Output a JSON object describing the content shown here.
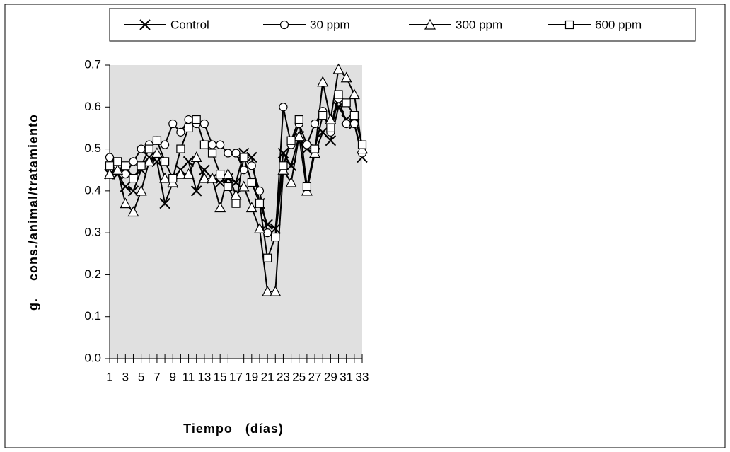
{
  "chart_data": {
    "type": "line",
    "xlabel": "Tiempo   (días)",
    "ylabel": "g.    cons./animal/tratamiento",
    "x": [
      1,
      2,
      3,
      4,
      5,
      6,
      7,
      8,
      9,
      10,
      11,
      12,
      13,
      14,
      15,
      16,
      17,
      18,
      19,
      20,
      21,
      22,
      23,
      24,
      25,
      26,
      27,
      28,
      29,
      30,
      31,
      32,
      33
    ],
    "xlim": [
      1,
      33
    ],
    "xticks": [
      1,
      3,
      5,
      7,
      9,
      11,
      13,
      15,
      17,
      19,
      21,
      23,
      25,
      27,
      29,
      31,
      33
    ],
    "ylim": [
      0,
      0.7
    ],
    "yticks": [
      {
        "value": 0,
        "label": "0.0"
      },
      0.1,
      0.2,
      0.3,
      0.4,
      0.5,
      0.6,
      0.7
    ],
    "plot_background": "#e0e0e0",
    "legend": "top",
    "series": [
      {
        "name": "Control",
        "color": "#000000",
        "marker": "x",
        "values": [
          0.44,
          0.44,
          0.41,
          0.4,
          0.45,
          0.48,
          0.47,
          0.37,
          0.42,
          0.45,
          0.47,
          0.4,
          0.45,
          0.43,
          0.42,
          0.43,
          0.42,
          0.49,
          0.48,
          0.37,
          0.32,
          0.31,
          0.49,
          0.46,
          0.53,
          0.5,
          0.49,
          0.54,
          0.52,
          0.6,
          0.57,
          0.56,
          0.48
        ]
      },
      {
        "name": "30 ppm",
        "color": "#000000",
        "marker": "circle",
        "values": [
          0.48,
          0.46,
          0.44,
          0.47,
          0.5,
          0.51,
          0.52,
          0.51,
          0.56,
          0.54,
          0.57,
          0.56,
          0.56,
          0.51,
          0.51,
          0.49,
          0.49,
          0.45,
          0.46,
          0.4,
          0.3,
          0.29,
          0.6,
          0.51,
          0.56,
          0.51,
          0.56,
          0.59,
          0.54,
          0.62,
          0.56,
          0.56,
          0.49
        ]
      },
      {
        "name": "300 ppm",
        "color": "#000000",
        "marker": "triangle",
        "values": [
          0.44,
          0.45,
          0.37,
          0.35,
          0.4,
          0.47,
          0.49,
          0.43,
          0.42,
          0.44,
          0.44,
          0.48,
          0.43,
          0.43,
          0.36,
          0.44,
          0.39,
          0.41,
          0.36,
          0.31,
          0.16,
          0.16,
          0.45,
          0.42,
          0.53,
          0.4,
          0.49,
          0.66,
          0.57,
          0.69,
          0.67,
          0.63,
          0.5
        ]
      },
      {
        "name": "600 ppm",
        "color": "#000000",
        "marker": "square",
        "values": [
          0.46,
          0.47,
          0.46,
          0.43,
          0.46,
          0.5,
          0.52,
          0.47,
          0.43,
          0.5,
          0.55,
          0.57,
          0.51,
          0.49,
          0.44,
          0.41,
          0.37,
          0.48,
          0.42,
          0.37,
          0.24,
          0.29,
          0.46,
          0.52,
          0.57,
          0.41,
          0.5,
          0.58,
          0.55,
          0.63,
          0.61,
          0.58,
          0.51
        ]
      }
    ]
  }
}
